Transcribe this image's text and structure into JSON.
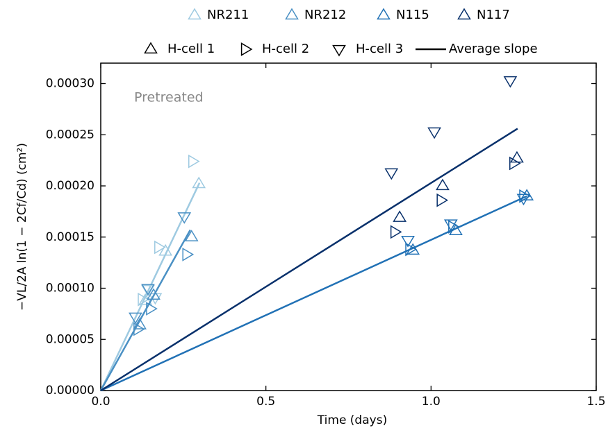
{
  "chart_data": {
    "type": "scatter",
    "x_label": "Time (days)",
    "y_label": "−VL/2A ln(1 − 2Cf/Cd) (cm²)",
    "annotation": "Pretreated",
    "xlim": [
      0,
      1.5
    ],
    "ylim": [
      0,
      0.00032
    ],
    "xticks": [
      {
        "value": 0,
        "label": "0.0"
      },
      {
        "value": 0.5,
        "label": "0.5"
      },
      {
        "value": 1,
        "label": "1.0"
      },
      {
        "value": 1.5,
        "label": "1.5"
      }
    ],
    "yticks": [
      {
        "value": 0,
        "label": "0.00000"
      },
      {
        "value": 5e-05,
        "label": "0.00005"
      },
      {
        "value": 0.0001,
        "label": "0.00010"
      },
      {
        "value": 0.00015,
        "label": "0.00015"
      },
      {
        "value": 0.0002,
        "label": "0.00020"
      },
      {
        "value": 0.00025,
        "label": "0.00025"
      },
      {
        "value": 0.0003,
        "label": "0.00030"
      }
    ],
    "markers": [
      {
        "name": "H-cell 1",
        "shape": "up"
      },
      {
        "name": "H-cell 2",
        "shape": "right"
      },
      {
        "name": "H-cell 3",
        "shape": "down"
      }
    ],
    "fit_label": "Average slope",
    "fit_legend_color": "#000000",
    "series": [
      {
        "name": "NR211",
        "color": "#9ecae1",
        "x": [
          0.297,
          0.196,
          0.135,
          0.278,
          0.175,
          0.125,
          0.143,
          0.165
        ],
        "y": [
          0.000202,
          0.000136,
          8.8e-05,
          0.000224,
          0.00014,
          8.9e-05,
          9.9e-05,
          9.1e-05
        ],
        "shape": [
          "up",
          "up",
          "up",
          "right",
          "right",
          "right",
          "down",
          "down"
        ],
        "fit": {
          "x": [
            0,
            0.299
          ],
          "y": [
            0,
            0.000203
          ]
        }
      },
      {
        "name": "NR212",
        "color": "#4a90c4",
        "x": [
          0.275,
          0.16,
          0.118,
          0.26,
          0.15,
          0.112,
          0.253,
          0.143,
          0.105
        ],
        "y": [
          0.00015,
          9.3e-05,
          6.4e-05,
          0.000133,
          8e-05,
          6e-05,
          0.00017,
          0.0001,
          7.2e-05
        ],
        "shape": [
          "up",
          "up",
          "up",
          "right",
          "right",
          "right",
          "down",
          "down",
          "down"
        ],
        "fit": {
          "x": [
            0,
            0.271
          ],
          "y": [
            0,
            0.000157
          ]
        }
      },
      {
        "name": "N115",
        "color": "#2171b5",
        "x": [
          1.29,
          1.075,
          0.945,
          1.28,
          1.065,
          0.935,
          1.28,
          1.06,
          0.93
        ],
        "y": [
          0.00019,
          0.000156,
          0.000137,
          0.00019,
          0.00016,
          0.000138,
          0.000188,
          0.000163,
          0.000147
        ],
        "shape": [
          "up",
          "up",
          "up",
          "right",
          "right",
          "right",
          "down",
          "down",
          "down"
        ],
        "fit": {
          "x": [
            0,
            1.29
          ],
          "y": [
            0,
            0.00019
          ]
        }
      },
      {
        "name": "N117",
        "color": "#08306b",
        "x": [
          1.26,
          1.035,
          0.905,
          1.25,
          1.03,
          0.89,
          1.24,
          1.01,
          0.88
        ],
        "y": [
          0.000227,
          0.0002,
          0.000169,
          0.000222,
          0.000186,
          0.000155,
          0.000303,
          0.000253,
          0.000213
        ],
        "shape": [
          "up",
          "up",
          "up",
          "right",
          "right",
          "right",
          "down",
          "down",
          "down"
        ],
        "fit": {
          "x": [
            0,
            1.262
          ],
          "y": [
            0,
            0.000256
          ]
        }
      }
    ]
  }
}
